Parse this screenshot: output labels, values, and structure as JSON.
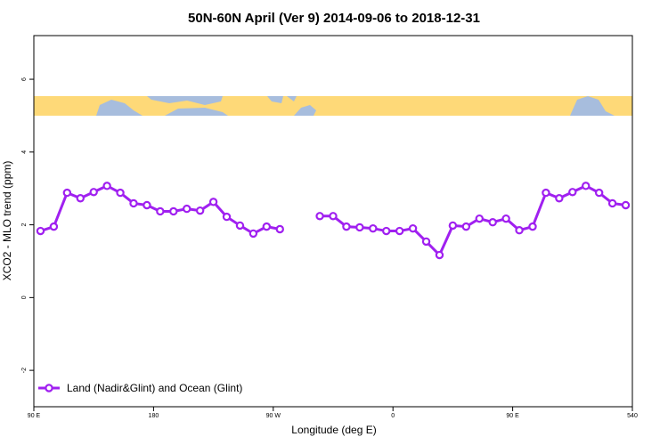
{
  "chart_data": {
    "type": "line",
    "title": "50N-60N April (Ver 9)   2014-09-06 to 2018-12-31",
    "x_label": "Longitude (deg E)",
    "y_label": "XCO2 - MLO trend (ppm)",
    "x": [
      95,
      105,
      115,
      125,
      135,
      145,
      155,
      165,
      175,
      185,
      195,
      205,
      215,
      225,
      235,
      245,
      255,
      265,
      275,
      285,
      295,
      305,
      315,
      325,
      335,
      345,
      355,
      365,
      375,
      385,
      395,
      405,
      415,
      425,
      435,
      445,
      455,
      465,
      475,
      485,
      495,
      505,
      515,
      525,
      535
    ],
    "series": [
      {
        "name": "Land (Nadir&Glint) and Ocean (Glint)",
        "color": "#a020f0",
        "values": [
          1.83,
          1.95,
          2.88,
          2.73,
          2.9,
          3.07,
          2.88,
          2.59,
          2.54,
          2.37,
          2.37,
          2.44,
          2.39,
          2.63,
          2.22,
          1.98,
          1.76,
          1.95,
          1.88,
          null,
          null,
          2.24,
          2.24,
          1.95,
          1.93,
          1.9,
          1.83,
          1.83,
          1.9,
          1.54,
          1.17,
          1.98,
          1.95,
          2.17,
          2.07,
          2.17,
          1.85,
          1.95,
          2.88,
          2.73,
          2.9,
          3.07,
          2.88,
          2.59,
          2.54
        ]
      }
    ],
    "xlim": [
      90,
      540
    ],
    "xticks": [
      {
        "value": 90,
        "label": "90 E"
      },
      180,
      {
        "value": 270,
        "label": "90 W"
      },
      {
        "value": 360,
        "label": "0"
      },
      {
        "value": 450,
        "label": "90 E"
      },
      540
    ],
    "ylim": [
      -3,
      7.2
    ],
    "yticks": [
      -2,
      0,
      2,
      4,
      6
    ],
    "legend": "bottom-left"
  }
}
